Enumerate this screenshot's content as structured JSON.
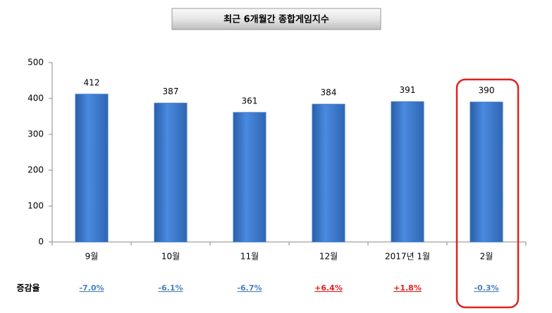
{
  "chart_data": {
    "type": "bar",
    "title": "최근 6개월간 종합게임지수",
    "categories": [
      "9월",
      "10월",
      "11월",
      "12월",
      "2017년 1월",
      "2월"
    ],
    "values": [
      412,
      387,
      361,
      384,
      391,
      390
    ],
    "color": "#3a78c9",
    "ylim": [
      0,
      500
    ],
    "yticks": [
      0,
      100,
      200,
      300,
      400,
      500
    ],
    "grid": false,
    "change_row_label": "증감율",
    "change_labels": [
      "-7.0%",
      "-6.1%",
      "-6.7%",
      "+6.4%",
      "+1.8%",
      "-0.3%"
    ],
    "change_colors": [
      "#4a7fc0",
      "#4a7fc0",
      "#4a7fc0",
      "#e02020",
      "#e02020",
      "#4a7fc0"
    ]
  }
}
